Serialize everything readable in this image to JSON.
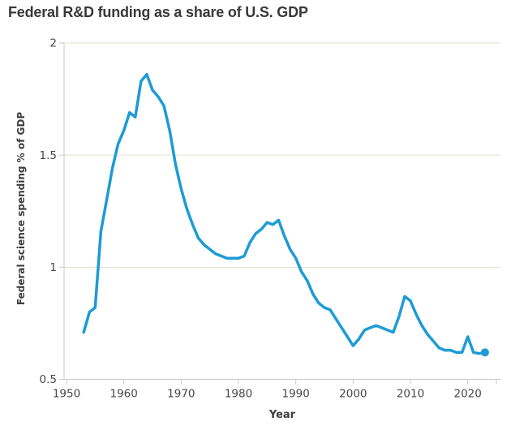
{
  "header": {
    "title": "Federal R&D funding as a share of U.S. GDP"
  },
  "chart_data": {
    "type": "line",
    "title": "Federal R&D funding as a share of U.S. GDP",
    "xlabel": "Year",
    "ylabel": "Federal science spending % of GDP",
    "xlim": [
      1950,
      2025
    ],
    "ylim": [
      0.5,
      2
    ],
    "x_ticks": [
      1950,
      1960,
      1970,
      1980,
      1990,
      2000,
      2010,
      2020
    ],
    "x_minor_ticks": [
      2025
    ],
    "y_ticks": [
      0.5,
      1,
      1.5,
      2
    ],
    "grid": "horizontal",
    "legend": "none",
    "end_point_marker": true,
    "series": [
      {
        "name": "Federal R&D funding as a share of U.S. GDP",
        "x": [
          1953,
          1954,
          1955,
          1956,
          1957,
          1958,
          1959,
          1960,
          1961,
          1962,
          1963,
          1964,
          1965,
          1966,
          1967,
          1968,
          1969,
          1970,
          1971,
          1972,
          1973,
          1974,
          1975,
          1976,
          1977,
          1978,
          1979,
          1980,
          1981,
          1982,
          1983,
          1984,
          1985,
          1986,
          1987,
          1988,
          1989,
          1990,
          1991,
          1992,
          1993,
          1994,
          1995,
          1996,
          1997,
          1998,
          1999,
          2000,
          2001,
          2002,
          2003,
          2004,
          2005,
          2006,
          2007,
          2008,
          2009,
          2010,
          2011,
          2012,
          2013,
          2014,
          2015,
          2016,
          2017,
          2018,
          2019,
          2020,
          2021,
          2022,
          2023
        ],
        "values": [
          0.71,
          0.8,
          0.82,
          1.16,
          1.3,
          1.44,
          1.55,
          1.61,
          1.69,
          1.67,
          1.83,
          1.86,
          1.79,
          1.76,
          1.72,
          1.61,
          1.46,
          1.35,
          1.26,
          1.19,
          1.13,
          1.1,
          1.08,
          1.06,
          1.05,
          1.04,
          1.04,
          1.04,
          1.05,
          1.11,
          1.15,
          1.17,
          1.2,
          1.19,
          1.21,
          1.14,
          1.08,
          1.04,
          0.98,
          0.94,
          0.88,
          0.84,
          0.82,
          0.81,
          0.77,
          0.73,
          0.69,
          0.65,
          0.68,
          0.72,
          0.73,
          0.74,
          0.73,
          0.72,
          0.71,
          0.78,
          0.87,
          0.85,
          0.79,
          0.74,
          0.7,
          0.67,
          0.64,
          0.63,
          0.63,
          0.62,
          0.62,
          0.69,
          0.62,
          0.615,
          0.62
        ]
      }
    ],
    "colors": {
      "line": "#1d9bd6",
      "gridline": "#e3ddd2",
      "axis_line": "#c9c9c9",
      "tick_text": "#484848",
      "axis_title_text": "#3d3d3d",
      "title_text": "#383838"
    }
  }
}
